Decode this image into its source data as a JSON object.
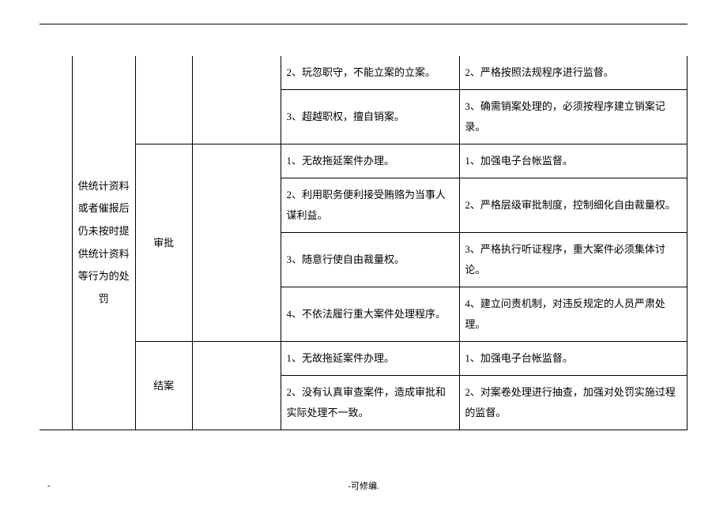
{
  "table": {
    "col1_text": "供统计资料或者催报后仍未按时提供统计资料等行为的处罚",
    "col3_stage2": "审批",
    "col3_stage3": "结案",
    "rows": [
      {
        "c4": "2、玩忽职守，不能立案的立案。",
        "c5": "2、严格按照法规程序进行监督。"
      },
      {
        "c4": "3、超越职权，擅自销案。",
        "c5": "3、确需销案处理的，必须按程序建立销案记录。"
      },
      {
        "c4": "1、无故拖延案件办理。",
        "c5": "1、加强电子台帐监督。"
      },
      {
        "c4": "2、利用职务便利接受贿赂为当事人谋利益。",
        "c5": "2、严格层级审批制度，控制细化自由裁量权。"
      },
      {
        "c4": "3、随意行使自由裁量权。",
        "c5": "3、严格执行听证程序，重大案件必须集体讨论。"
      },
      {
        "c4": "4、不依法履行重大案件处理程序。",
        "c5": "4、建立问责机制，对违反规定的人员严肃处理。"
      },
      {
        "c4": "1、无故拖延案件办理。",
        "c5": "1、加强电子台帐监督。"
      },
      {
        "c4": "2、没有认真审查案件，造成审批和实际处理不一致。",
        "c5": "2、对案卷处理进行抽查，加强对处罚实施过程的监督。"
      }
    ]
  },
  "footer": "-可修编.",
  "footer_dash": "-"
}
